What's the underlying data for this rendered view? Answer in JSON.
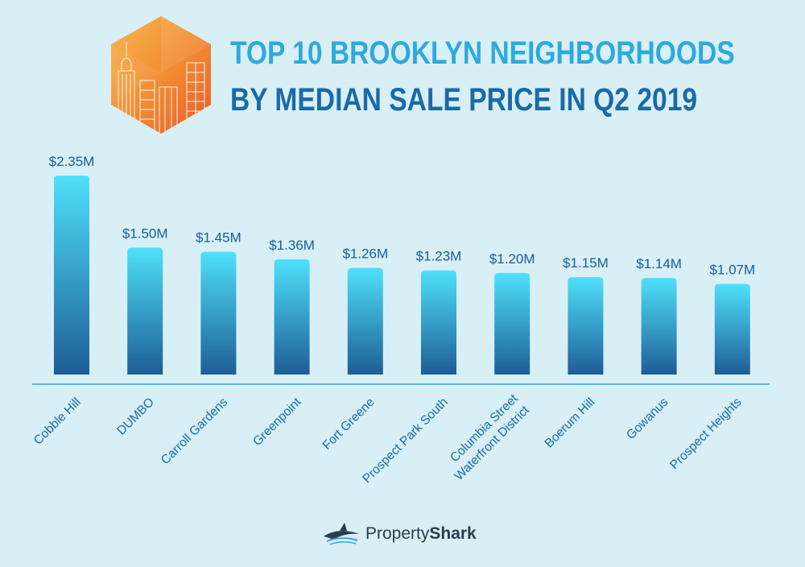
{
  "title": {
    "line1": "TOP 10 BROOKLYN NEIGHBORHOODS",
    "line2": "BY MEDIAN SALE PRICE IN Q2 2019"
  },
  "chart_data": {
    "type": "bar",
    "title": "TOP 10 BROOKLYN NEIGHBORHOODS BY MEDIAN SALE PRICE IN Q2 2019",
    "categories": [
      [
        "Cobble Hill"
      ],
      [
        "DUMBO"
      ],
      [
        "Carroll Gardens"
      ],
      [
        "Greenpoint"
      ],
      [
        "Fort Greene"
      ],
      [
        "Prospect Park South"
      ],
      [
        "Columbia Street",
        "Waterfront District"
      ],
      [
        "Boerum Hill"
      ],
      [
        "Gowanus"
      ],
      [
        "Prospect Heights"
      ]
    ],
    "values": [
      2.35,
      1.5,
      1.45,
      1.36,
      1.26,
      1.23,
      1.2,
      1.15,
      1.14,
      1.07
    ],
    "value_labels": [
      "$2.35M",
      "$1.50M",
      "$1.45M",
      "$1.36M",
      "$1.26M",
      "$1.23M",
      "$1.20M",
      "$1.15M",
      "$1.14M",
      "$1.07M"
    ],
    "units": "USD millions",
    "ylim": [
      0,
      2.35
    ],
    "grid": false,
    "legend": "none",
    "colors": {
      "bar_top": "#4fe0fb",
      "bar_bottom": "#1d5d97",
      "baseline": "#2fa9dd",
      "label": "#1a6aa7"
    }
  },
  "brand": {
    "text_light": "Property",
    "text_bold": "Shark",
    "icon": "shark-logo-icon"
  },
  "logo": {
    "icon": "city-skyline-hexagon-icon",
    "colors": [
      "#f8b150",
      "#f07d2e",
      "#ea5b2c"
    ]
  }
}
